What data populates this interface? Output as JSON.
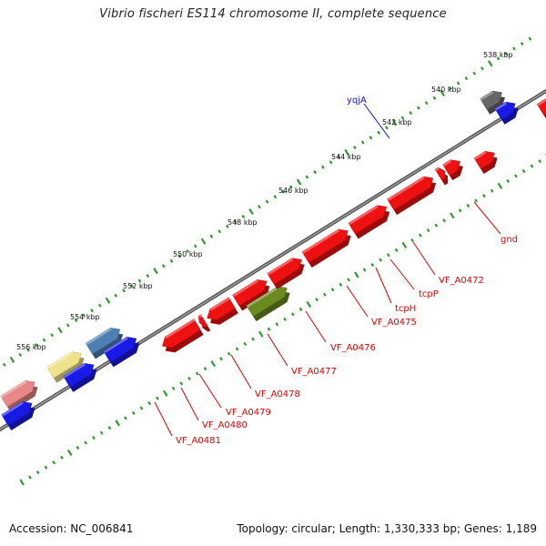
{
  "title": "Vibrio fischeri ES114 chromosome II, complete sequence",
  "footer": {
    "accession": "Accession: NC_006841",
    "summary": "Topology: circular; Length: 1,330,333 bp; Genes: 1,189"
  },
  "colors": {
    "backbone": "#777777",
    "ruler_dots": "#2e9a2e",
    "gene_label": "#dd0000",
    "gene_red": "#ee1111",
    "gene_blue": "#1a1ae6",
    "gene_cyan": "#22cccc",
    "gene_grey": "#666666",
    "gene_olive": "#6b8a22",
    "gene_steel": "#4d7fb3",
    "gene_khaki": "#eee28a",
    "gene_pink": "#e88888",
    "label_blue": "#1111dd"
  },
  "ruler_labels": [
    "538 kbp",
    "540 kbp",
    "542 kbp",
    "544 kbp",
    "546 kbp",
    "548 kbp",
    "550 kbp",
    "552 kbp",
    "554 kbp",
    "556 kbp"
  ],
  "gene_labels": [
    {
      "text": "yqjA",
      "color": "label_blue"
    },
    {
      "text": "gnd",
      "color": "gene_label"
    },
    {
      "text": "VF_A0472",
      "color": "gene_label"
    },
    {
      "text": "tcpP",
      "color": "gene_label"
    },
    {
      "text": "tcpH",
      "color": "gene_label"
    },
    {
      "text": "VF_A0475",
      "color": "gene_label"
    },
    {
      "text": "VF_A0476",
      "color": "gene_label"
    },
    {
      "text": "VF_A0477",
      "color": "gene_label"
    },
    {
      "text": "VF_A0478",
      "color": "gene_label"
    },
    {
      "text": "VF_A0479",
      "color": "gene_label"
    },
    {
      "text": "VF_A0480",
      "color": "gene_label"
    },
    {
      "text": "VF_A0481",
      "color": "gene_label"
    }
  ]
}
